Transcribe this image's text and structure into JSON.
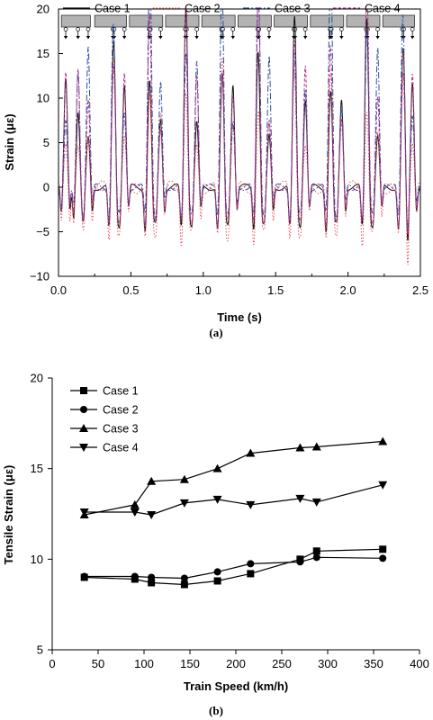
{
  "chart_data": [
    {
      "type": "line",
      "panel_label": "(a)",
      "xlabel": "Time (s)",
      "ylabel": "Strain (με)",
      "xlim": [
        0,
        2.5
      ],
      "ylim": [
        -10,
        20
      ],
      "xticks": [
        "0.0",
        "0.5",
        "1.0",
        "1.5",
        "2.0",
        "2.5"
      ],
      "yticks": [
        "−10",
        "−5",
        "0",
        "5",
        "10",
        "15",
        "20"
      ],
      "legend_position": "top",
      "grid": false,
      "annotation": "train car and axle-load diagram along top",
      "series": [
        {
          "name": "Case 1",
          "color": "#111111",
          "style": "solid",
          "peak": 12,
          "trough": -6
        },
        {
          "name": "Case 2",
          "color": "#e8525a",
          "style": "dotted",
          "peak": 9,
          "trough": -7.5
        },
        {
          "name": "Case 3",
          "color": "#2b4f9e",
          "style": "dashdot",
          "peak": 16,
          "trough": -4.5
        },
        {
          "name": "Case 4",
          "color": "#b0338a",
          "style": "dashed",
          "peak": 14,
          "trough": -5.5
        }
      ],
      "axle_event_times": [
        0.05,
        0.135,
        0.205,
        0.375,
        0.385,
        0.455,
        0.625,
        0.635,
        0.705,
        0.875,
        0.885,
        0.955,
        1.125,
        1.135,
        1.205,
        1.375,
        1.385,
        1.455,
        1.625,
        1.635,
        1.705,
        1.875,
        1.885,
        1.955,
        2.125,
        2.135,
        2.205,
        2.375,
        2.385,
        2.445
      ],
      "car_boundaries": [
        0.02,
        0.22,
        0.25,
        0.47,
        0.49,
        0.72,
        0.74,
        0.97,
        0.99,
        1.22,
        1.24,
        1.47,
        1.49,
        1.72,
        1.74,
        1.97,
        1.99,
        2.22,
        2.24,
        2.46
      ]
    },
    {
      "type": "line",
      "panel_label": "(b)",
      "xlabel": "Train Speed (km/h)",
      "ylabel": "Tensile Strain (με)",
      "xlim": [
        0,
        400
      ],
      "ylim": [
        5,
        20
      ],
      "xticks": [
        "0",
        "50",
        "100",
        "150",
        "200",
        "250",
        "300",
        "350",
        "400"
      ],
      "yticks": [
        "5",
        "10",
        "15",
        "20"
      ],
      "legend_position": "top-left",
      "grid": false,
      "x": [
        35,
        90,
        108,
        144,
        180,
        216,
        270,
        288,
        360
      ],
      "series": [
        {
          "name": "Case 1",
          "marker": "square",
          "values": [
            9.0,
            8.9,
            8.7,
            8.6,
            8.8,
            9.2,
            10.0,
            10.45,
            10.55
          ]
        },
        {
          "name": "Case 2",
          "marker": "circle",
          "values": [
            9.05,
            9.05,
            9.0,
            8.95,
            9.3,
            9.75,
            9.85,
            10.1,
            10.05
          ]
        },
        {
          "name": "Case 3",
          "marker": "triangle-up",
          "values": [
            12.45,
            13.0,
            14.3,
            14.4,
            15.0,
            15.85,
            16.15,
            16.2,
            16.5
          ]
        },
        {
          "name": "Case 4",
          "marker": "triangle-down",
          "values": [
            12.6,
            12.6,
            12.45,
            13.1,
            13.3,
            13.0,
            13.35,
            13.15,
            14.1
          ]
        }
      ]
    }
  ]
}
